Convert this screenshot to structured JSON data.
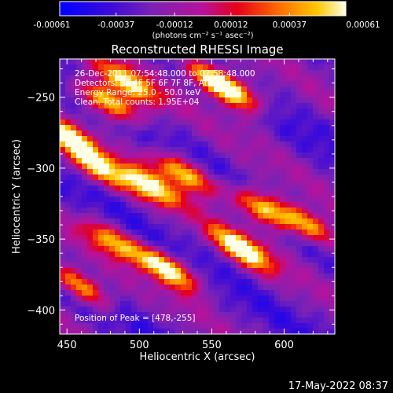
{
  "chart_data": {
    "type": "heatmap",
    "title": "Reconstructed RHESSI Image",
    "xlabel": "Heliocentric X (arcsec)",
    "ylabel": "Heliocentric Y (arcsec)",
    "xlim": [
      445,
      635
    ],
    "ylim": [
      -417,
      -223
    ],
    "x_ticks": [
      450,
      500,
      550,
      600
    ],
    "y_ticks": [
      -250,
      -300,
      -350,
      -400
    ],
    "colorbar": {
      "range": [
        -0.00061,
        0.00061
      ],
      "tick_labels": [
        "-0.00061",
        "-0.00037",
        "-0.00012",
        "0.00012",
        "0.00037",
        "0.00061"
      ],
      "unit_label": "(photons cm⁻² s⁻¹ asec⁻²)"
    },
    "annotations": [
      "26-Dec-2011 07:54:48.000 to 07:58:48.000",
      "Detectors: 3F 4F 5F 6F 7F 8F, Att 0",
      "Energy Range: 25.0 - 50.0 keV",
      "Clean. Total counts: 1.95E+04"
    ],
    "peak_label": "Position of Peak = [478,-255]",
    "peak": [
      478,
      -255
    ],
    "stripe_angle_deg": -33,
    "bright_blobs": [
      {
        "x": 520,
        "y": -371,
        "level": 1.0
      },
      {
        "x": 571,
        "y": -357,
        "level": 0.98
      },
      {
        "x": 586,
        "y": -329,
        "level": 0.95
      },
      {
        "x": 506,
        "y": -312,
        "level": 0.9
      },
      {
        "x": 531,
        "y": -304,
        "level": 0.92
      },
      {
        "x": 478,
        "y": -253,
        "level": 1.0
      },
      {
        "x": 452,
        "y": -279,
        "level": 0.85
      },
      {
        "x": 493,
        "y": -240,
        "level": 0.85
      },
      {
        "x": 552,
        "y": -238,
        "level": 0.8
      },
      {
        "x": 565,
        "y": -246,
        "level": 0.75
      },
      {
        "x": 482,
        "y": -352,
        "level": 0.72
      },
      {
        "x": 459,
        "y": -383,
        "level": 0.78
      },
      {
        "x": 470,
        "y": -300,
        "level": 0.7
      },
      {
        "x": 617,
        "y": -340,
        "level": 0.75
      }
    ]
  },
  "timestamp": "17-May-2022 08:37"
}
